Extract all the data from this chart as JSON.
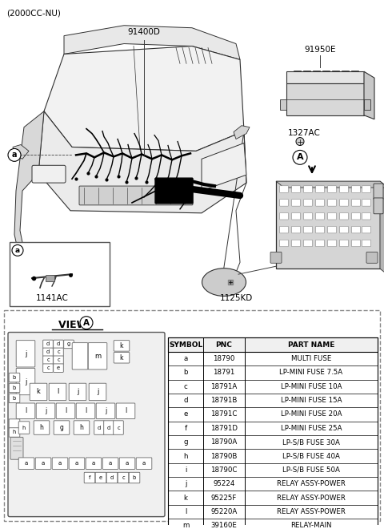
{
  "title_text": "(2000CC-NU)",
  "label_91400D": "91400D",
  "label_91950E": "91950E",
  "label_1327AC": "1327AC",
  "label_1125KD": "1125KD",
  "label_1141AC": "1141AC",
  "table_headers": [
    "SYMBOL",
    "PNC",
    "PART NAME"
  ],
  "table_rows": [
    [
      "a",
      "18790",
      "MULTI FUSE"
    ],
    [
      "b",
      "18791",
      "LP-MINI FUSE 7.5A"
    ],
    [
      "c",
      "18791A",
      "LP-MINI FUSE 10A"
    ],
    [
      "d",
      "18791B",
      "LP-MINI FUSE 15A"
    ],
    [
      "e",
      "18791C",
      "LP-MINI FUSE 20A"
    ],
    [
      "f",
      "18791D",
      "LP-MINI FUSE 25A"
    ],
    [
      "g",
      "18790A",
      "LP-S/B FUSE 30A"
    ],
    [
      "h",
      "18790B",
      "LP-S/B FUSE 40A"
    ],
    [
      "i",
      "18790C",
      "LP-S/B FUSE 50A"
    ],
    [
      "j",
      "95224",
      "RELAY ASSY-POWER"
    ],
    [
      "k",
      "95225F",
      "RELAY ASSY-POWER"
    ],
    [
      "l",
      "95220A",
      "RELAY ASSY-POWER"
    ],
    [
      "m",
      "39160E",
      "RELAY-MAIN"
    ]
  ],
  "bg_color": "#ffffff",
  "line_color": "#404040",
  "text_color": "#000000",
  "car_color": "#303030",
  "fuse_bg": "#f0f0f0",
  "cover_color": "#e0e0e0",
  "fusebox_color": "#d0d0d0"
}
